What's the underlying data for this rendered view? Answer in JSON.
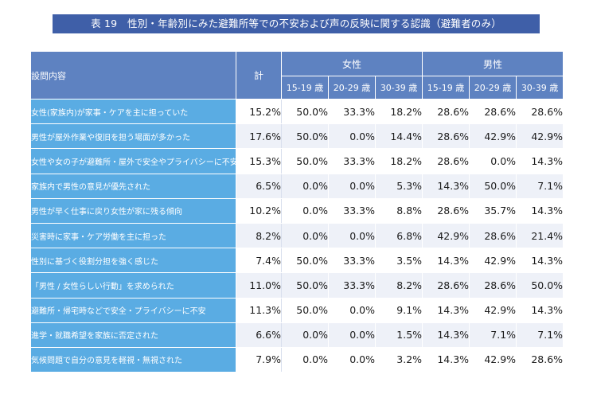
{
  "title": "表 19　性別・年齢別にみた避難所等での不安および声の反映に関する認識（避難者のみ）",
  "header": {
    "question": "設問内容",
    "total": "計",
    "female": "女性",
    "male": "男性",
    "ages": [
      "15-19 歳",
      "20-29 歳",
      "30-39 歳"
    ]
  },
  "rows": [
    {
      "label": "女性(家族内)が家事・ケアを主に担っていた",
      "total": "15.2%",
      "f": [
        "50.0%",
        "33.3%",
        "18.2%"
      ],
      "m": [
        "28.6%",
        "28.6%",
        "28.6%"
      ]
    },
    {
      "label": "男性が屋外作業や復旧を担う場面が多かった",
      "total": "17.6%",
      "f": [
        "50.0%",
        "0.0%",
        "14.4%"
      ],
      "m": [
        "28.6%",
        "42.9%",
        "42.9%"
      ]
    },
    {
      "label": "女性や女の子が避難所・屋外で安全やプライバシーに不安",
      "total": "15.3%",
      "f": [
        "50.0%",
        "33.3%",
        "18.2%"
      ],
      "m": [
        "28.6%",
        "0.0%",
        "14.3%"
      ]
    },
    {
      "label": "家族内で男性の意見が優先された",
      "total": "6.5%",
      "f": [
        "0.0%",
        "0.0%",
        "5.3%"
      ],
      "m": [
        "14.3%",
        "50.0%",
        "7.1%"
      ]
    },
    {
      "label": "男性が早く仕事に戻り女性が家に残る傾向",
      "total": "10.2%",
      "f": [
        "0.0%",
        "33.3%",
        "8.8%"
      ],
      "m": [
        "28.6%",
        "35.7%",
        "14.3%"
      ]
    },
    {
      "label": "災害時に家事・ケア労働を主に担った",
      "total": "8.2%",
      "f": [
        "0.0%",
        "0.0%",
        "6.8%"
      ],
      "m": [
        "42.9%",
        "28.6%",
        "21.4%"
      ]
    },
    {
      "label": "性別に基づく役割分担を強く感じた",
      "total": "7.4%",
      "f": [
        "50.0%",
        "33.3%",
        "3.5%"
      ],
      "m": [
        "14.3%",
        "42.9%",
        "14.3%"
      ]
    },
    {
      "label": "「男性 / 女性らしい行動」を求められた",
      "total": "11.0%",
      "f": [
        "50.0%",
        "33.3%",
        "8.2%"
      ],
      "m": [
        "28.6%",
        "28.6%",
        "50.0%"
      ]
    },
    {
      "label": "避難所・帰宅時などで安全・プライバシーに不安",
      "total": "11.3%",
      "f": [
        "50.0%",
        "0.0%",
        "9.1%"
      ],
      "m": [
        "14.3%",
        "42.9%",
        "14.3%"
      ]
    },
    {
      "label": "進学・就職希望を家族に否定された",
      "total": "6.6%",
      "f": [
        "0.0%",
        "0.0%",
        "1.5%"
      ],
      "m": [
        "14.3%",
        "7.1%",
        "7.1%"
      ]
    },
    {
      "label": "気候問題で自分の意見を軽視・無視された",
      "total": "7.9%",
      "f": [
        "0.0%",
        "0.0%",
        "3.2%"
      ],
      "m": [
        "14.3%",
        "42.9%",
        "28.6%"
      ]
    }
  ]
}
